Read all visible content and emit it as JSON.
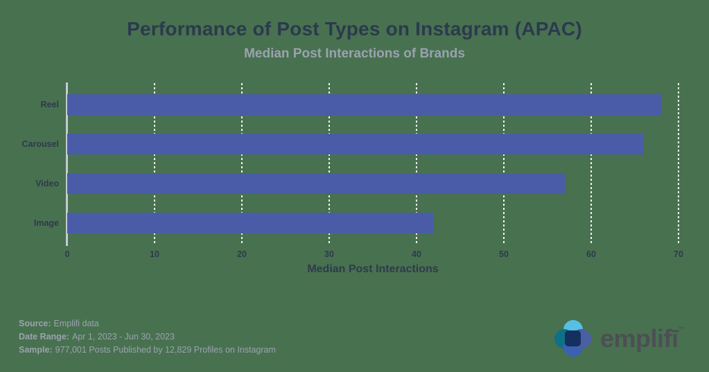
{
  "chart": {
    "title": "Performance of Post Types on Instagram (APAC)",
    "subtitle": "Median Post Interactions of Brands"
  },
  "chart_data": {
    "type": "bar",
    "orientation": "horizontal",
    "categories": [
      "Reel",
      "Carousel",
      "Video",
      "Image"
    ],
    "values": [
      68,
      66,
      57,
      42
    ],
    "title": "Performance of Post Types on Instagram (APAC)",
    "subtitle": "Median Post Interactions of Brands",
    "xlabel": "Median Post Interactions",
    "ylabel": "",
    "xlim": [
      0,
      70
    ],
    "xticks": [
      0,
      10,
      20,
      30,
      40,
      50,
      60,
      70
    ],
    "grid": "vertical-dashed-white",
    "legend": "none"
  },
  "colors": {
    "background": "#487150",
    "bar": "#4A5CA8",
    "title_text": "#2B3A4D",
    "subtitle_text": "#9AA2AE",
    "axis_text": "#2E3A4D",
    "axis_line": "#C5CBD1",
    "gridline": "#FFFFFF",
    "footer_text": "#9BA3AF",
    "logo_text": "#4C4F54",
    "logo_light_blue": "#55C0E4",
    "logo_teal": "#0E7186",
    "logo_blue": "#3A62B1",
    "logo_indigo": "#4A5EA4",
    "logo_navy": "#14305E"
  },
  "footer": {
    "source_label": "Source:",
    "source_value": "Emplifi data",
    "range_label": "Date Range:",
    "range_value": "Apr 1, 2023 - Jun 30, 2023",
    "sample_label": "Sample:",
    "sample_value": "977,001 Posts Published by 12,829 Profiles on Instagram"
  },
  "logo": {
    "wordmark": "emplifī",
    "trademark": "™"
  }
}
